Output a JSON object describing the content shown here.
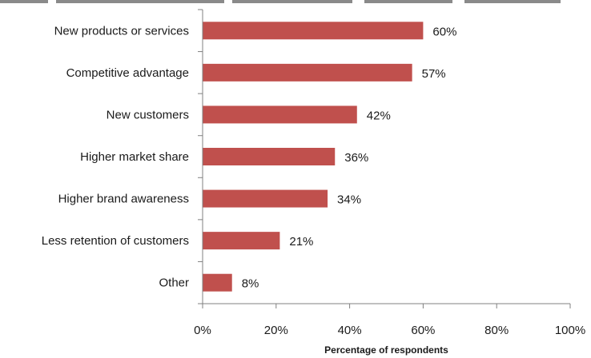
{
  "chart_data": {
    "type": "bar",
    "orientation": "horizontal",
    "title": "",
    "xlabel": "Percentage of respondents",
    "ylabel": "",
    "categories": [
      "New products or services",
      "Competitive advantage",
      "New customers",
      "Higher market share",
      "Higher brand awareness",
      "Less retention of customers",
      "Other"
    ],
    "values": [
      60,
      57,
      42,
      36,
      34,
      21,
      8
    ],
    "value_labels": [
      "60%",
      "57%",
      "42%",
      "36%",
      "34%",
      "21%",
      "8%"
    ],
    "xlim": [
      0,
      100
    ],
    "x_ticks": [
      0,
      20,
      40,
      60,
      80,
      100
    ],
    "x_tick_labels": [
      "0%",
      "20%",
      "40%",
      "60%",
      "80%",
      "100%"
    ],
    "grid": false,
    "legend": "none",
    "bar_color": "#c0504d"
  }
}
